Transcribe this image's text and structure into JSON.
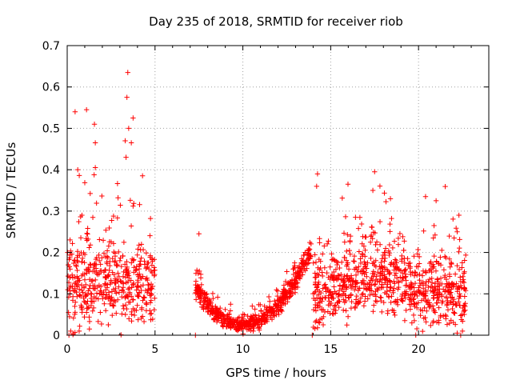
{
  "chart_data": {
    "type": "scatter",
    "title": "Day 235 of 2018, SRMTID for receiver riob",
    "xlabel": "GPS time / hours",
    "ylabel": "SRMTID / TECUs",
    "xlim": [
      0,
      24
    ],
    "ylim": [
      0,
      0.7
    ],
    "xticks": [
      0,
      5,
      10,
      15,
      20
    ],
    "xtick_labels": [
      "0",
      "5",
      "10",
      "15",
      "20"
    ],
    "yticks": [
      0,
      0.1,
      0.2,
      0.3,
      0.4,
      0.5,
      0.6,
      0.7
    ],
    "ytick_labels": [
      "0",
      "0.1",
      "0.2",
      "0.3",
      "0.4",
      "0.5",
      "0.6",
      "0.7"
    ],
    "grid": true,
    "marker": "+",
    "color": "#ff0000",
    "series": [
      {
        "name": "SRMTID",
        "segments": [
          {
            "x_range": [
              0.0,
              5.0
            ],
            "level": 0.13,
            "spread": 0.09
          },
          {
            "x_range": [
              7.3,
              13.9
            ],
            "level": 0.06,
            "spread": 0.03
          },
          {
            "x_range": [
              14.0,
              22.7
            ],
            "level": 0.12,
            "spread": 0.07
          }
        ],
        "notable_points": [
          {
            "x": 3.45,
            "y": 0.635
          },
          {
            "x": 3.4,
            "y": 0.575
          },
          {
            "x": 1.1,
            "y": 0.545
          },
          {
            "x": 0.45,
            "y": 0.54
          },
          {
            "x": 3.75,
            "y": 0.525
          },
          {
            "x": 1.55,
            "y": 0.51
          },
          {
            "x": 3.5,
            "y": 0.5
          },
          {
            "x": 1.6,
            "y": 0.465
          },
          {
            "x": 3.3,
            "y": 0.47
          },
          {
            "x": 3.65,
            "y": 0.465
          },
          {
            "x": 0.6,
            "y": 0.4
          },
          {
            "x": 1.6,
            "y": 0.405
          },
          {
            "x": 3.35,
            "y": 0.43
          },
          {
            "x": 14.25,
            "y": 0.39
          },
          {
            "x": 14.2,
            "y": 0.36
          },
          {
            "x": 17.5,
            "y": 0.395
          },
          {
            "x": 17.4,
            "y": 0.35
          },
          {
            "x": 20.4,
            "y": 0.335
          },
          {
            "x": 21.0,
            "y": 0.325
          },
          {
            "x": 18.4,
            "y": 0.33
          },
          {
            "x": 7.5,
            "y": 0.245
          },
          {
            "x": 22.3,
            "y": 0.29
          },
          {
            "x": 22.2,
            "y": 0.25
          }
        ]
      }
    ]
  }
}
